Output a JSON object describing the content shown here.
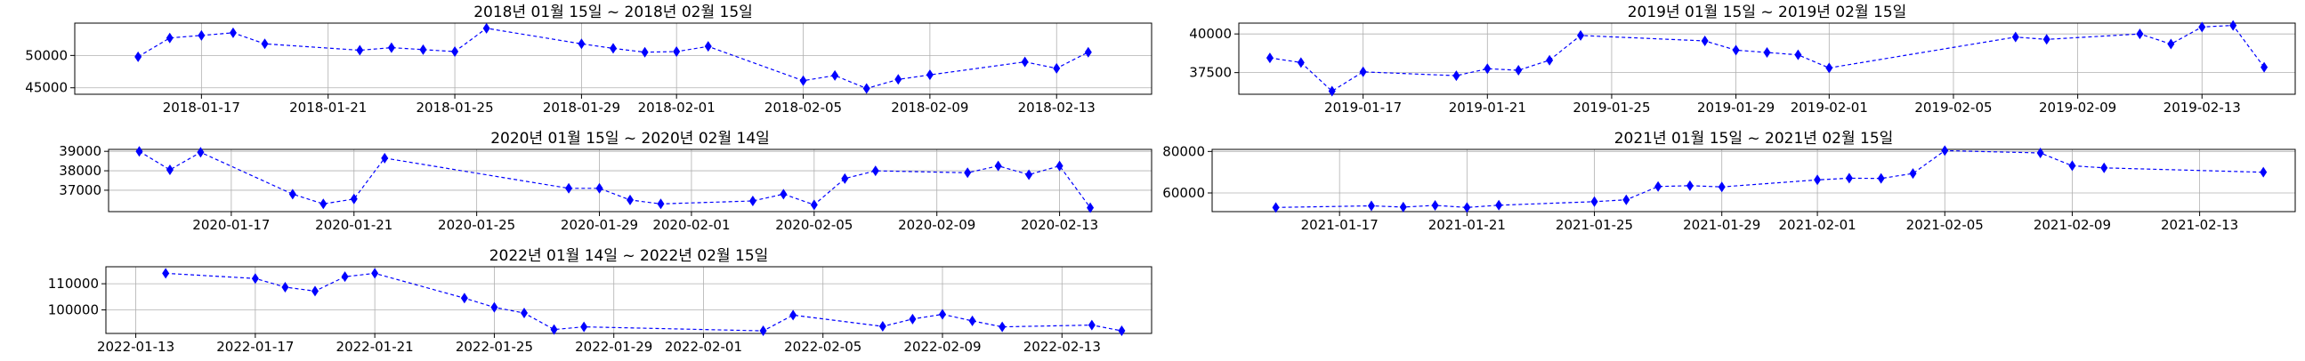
{
  "chart_data": [
    {
      "type": "line",
      "title": "2018년 01월 15일 ~ 2018년 02월 15일",
      "x_ticks": [
        "2018-01-17",
        "2018-01-21",
        "2018-01-25",
        "2018-01-29",
        "2018-02-01",
        "2018-02-05",
        "2018-02-09",
        "2018-02-13"
      ],
      "y_ticks": [
        45000,
        50000
      ],
      "xlim": [
        "2018-01-13",
        "2018-02-16"
      ],
      "ylim": [
        44000,
        55000
      ],
      "grid": true,
      "marker": "diamond",
      "line_style": "dashed",
      "color": "#0000ff",
      "series": [
        {
          "x": [
            "2018-01-15",
            "2018-01-16",
            "2018-01-17",
            "2018-01-18",
            "2018-01-19",
            "2018-01-22",
            "2018-01-23",
            "2018-01-24",
            "2018-01-25",
            "2018-01-26",
            "2018-01-29",
            "2018-01-30",
            "2018-01-31",
            "2018-02-01",
            "2018-02-02",
            "2018-02-05",
            "2018-02-06",
            "2018-02-07",
            "2018-02-08",
            "2018-02-09",
            "2018-02-12",
            "2018-02-13",
            "2018-02-14"
          ],
          "y": [
            49800,
            52700,
            53100,
            53500,
            51800,
            50800,
            51200,
            50900,
            50600,
            54200,
            51800,
            51100,
            50500,
            50600,
            51400,
            46100,
            46900,
            44900,
            46300,
            47000,
            49000,
            48000,
            50500
          ]
        }
      ]
    },
    {
      "type": "line",
      "title": "2019년 01월 15일 ~ 2019년 02월 15일",
      "x_ticks": [
        "2019-01-17",
        "2019-01-21",
        "2019-01-25",
        "2019-01-29",
        "2019-02-01",
        "2019-02-05",
        "2019-02-09",
        "2019-02-13"
      ],
      "y_ticks": [
        37500,
        40000
      ],
      "xlim": [
        "2019-01-13",
        "2019-02-16"
      ],
      "ylim": [
        36100,
        40700
      ],
      "grid": true,
      "marker": "diamond",
      "line_style": "dashed",
      "color": "#0000ff",
      "series": [
        {
          "x": [
            "2019-01-14",
            "2019-01-15",
            "2019-01-16",
            "2019-01-17",
            "2019-01-20",
            "2019-01-21",
            "2019-01-22",
            "2019-01-23",
            "2019-01-24",
            "2019-01-28",
            "2019-01-29",
            "2019-01-30",
            "2019-01-31",
            "2019-02-01",
            "2019-02-07",
            "2019-02-08",
            "2019-02-11",
            "2019-02-12",
            "2019-02-13",
            "2019-02-14",
            "2019-02-15"
          ],
          "y": [
            38450,
            38150,
            36300,
            37550,
            37300,
            37750,
            37650,
            38300,
            39900,
            39550,
            38950,
            38800,
            38650,
            37800,
            39800,
            39650,
            40000,
            39350,
            40450,
            40550,
            37850
          ]
        }
      ]
    },
    {
      "type": "line",
      "title": "2020년 01월 15일 ~ 2020년 02월 14일",
      "x_ticks": [
        "2020-01-17",
        "2020-01-21",
        "2020-01-25",
        "2020-01-29",
        "2020-02-01",
        "2020-02-05",
        "2020-02-09",
        "2020-02-13"
      ],
      "y_ticks": [
        37000,
        38000,
        39000
      ],
      "xlim": [
        "2020-01-13",
        "2020-02-16"
      ],
      "ylim": [
        35900,
        39100
      ],
      "grid": true,
      "marker": "diamond",
      "line_style": "dashed",
      "color": "#0000ff",
      "series": [
        {
          "x": [
            "2020-01-14",
            "2020-01-15",
            "2020-01-16",
            "2020-01-19",
            "2020-01-20",
            "2020-01-21",
            "2020-01-22",
            "2020-01-28",
            "2020-01-29",
            "2020-01-30",
            "2020-01-31",
            "2020-02-03",
            "2020-02-04",
            "2020-02-05",
            "2020-02-06",
            "2020-02-07",
            "2020-02-10",
            "2020-02-11",
            "2020-02-12",
            "2020-02-13",
            "2020-02-14"
          ],
          "y": [
            39000,
            38050,
            38950,
            36800,
            36300,
            36550,
            38650,
            37100,
            37100,
            36500,
            36300,
            36450,
            36800,
            36250,
            37600,
            38000,
            37900,
            38250,
            37800,
            38250,
            36100
          ]
        }
      ]
    },
    {
      "type": "line",
      "title": "2021년 01월 15일 ~ 2021년 02월 15일",
      "x_ticks": [
        "2021-01-17",
        "2021-01-21",
        "2021-01-25",
        "2021-01-29",
        "2021-02-01",
        "2021-02-05",
        "2021-02-09",
        "2021-02-13"
      ],
      "y_ticks": [
        60000,
        80000
      ],
      "xlim": [
        "2021-01-13",
        "2021-02-16"
      ],
      "ylim": [
        51000,
        81000
      ],
      "grid": true,
      "marker": "diamond",
      "line_style": "dashed",
      "color": "#0000ff",
      "series": [
        {
          "x": [
            "2021-01-15",
            "2021-01-18",
            "2021-01-19",
            "2021-01-20",
            "2021-01-21",
            "2021-01-22",
            "2021-01-25",
            "2021-01-26",
            "2021-01-27",
            "2021-01-28",
            "2021-01-29",
            "2021-02-01",
            "2021-02-02",
            "2021-02-03",
            "2021-02-04",
            "2021-02-05",
            "2021-02-08",
            "2021-02-09",
            "2021-02-10",
            "2021-02-15"
          ],
          "y": [
            53000,
            53800,
            53200,
            54000,
            53000,
            54100,
            55800,
            56700,
            63100,
            63500,
            62900,
            66300,
            67100,
            67000,
            69400,
            80400,
            79300,
            73100,
            72100,
            70000
          ]
        }
      ]
    },
    {
      "type": "line",
      "title": "2022년 01월 14일 ~ 2022년 02월 15일",
      "x_ticks": [
        "2022-01-13",
        "2022-01-17",
        "2022-01-21",
        "2022-01-25",
        "2022-01-29",
        "2022-02-01",
        "2022-02-05",
        "2022-02-09",
        "2022-02-13"
      ],
      "y_ticks": [
        100000,
        110000
      ],
      "xlim": [
        "2022-01-12",
        "2022-02-16"
      ],
      "ylim": [
        91000,
        116500
      ],
      "grid": true,
      "marker": "diamond",
      "line_style": "dashed",
      "color": "#0000ff",
      "series": [
        {
          "x": [
            "2022-01-14",
            "2022-01-17",
            "2022-01-18",
            "2022-01-19",
            "2022-01-20",
            "2022-01-21",
            "2022-01-24",
            "2022-01-25",
            "2022-01-26",
            "2022-01-27",
            "2022-01-28",
            "2022-02-03",
            "2022-02-04",
            "2022-02-07",
            "2022-02-08",
            "2022-02-09",
            "2022-02-10",
            "2022-02-11",
            "2022-02-14",
            "2022-02-15"
          ],
          "y": [
            114000,
            112000,
            108700,
            107200,
            112700,
            114000,
            104500,
            101000,
            98800,
            92500,
            93500,
            92000,
            98000,
            93700,
            96500,
            98300,
            95800,
            93500,
            94200,
            92000
          ]
        }
      ]
    }
  ]
}
